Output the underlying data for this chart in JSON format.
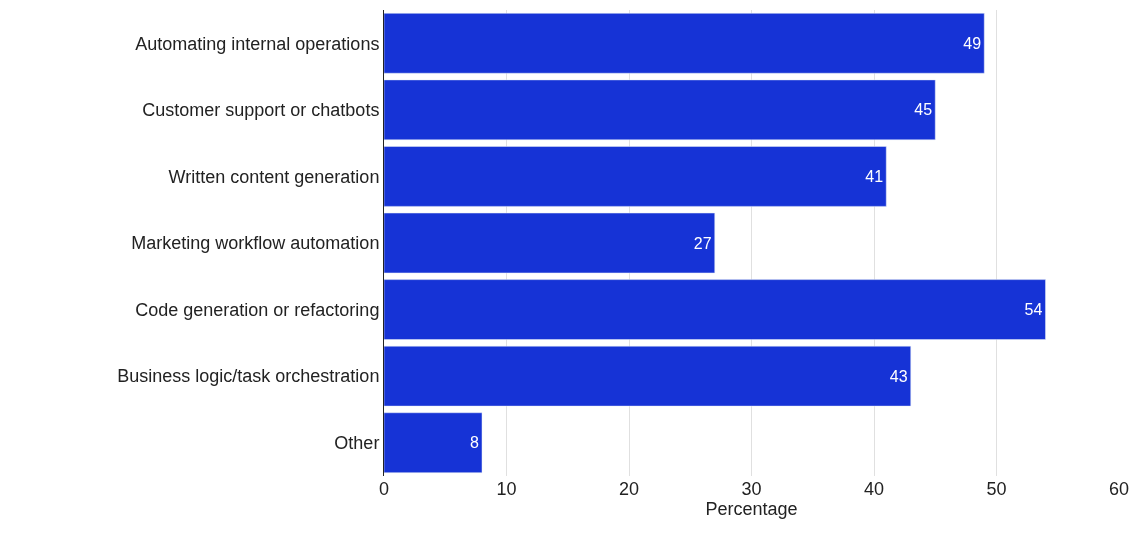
{
  "chart_data": {
    "type": "bar",
    "orientation": "horizontal",
    "xlabel": "Percentage",
    "categories": [
      "Automating internal operations",
      "Customer support or chatbots",
      "Written content generation",
      "Marketing workflow automation",
      "Code generation or refactoring",
      "Business logic/task orchestration",
      "Other"
    ],
    "values": [
      49,
      45,
      41,
      27,
      54,
      43,
      8
    ],
    "color": "#1633d6",
    "xlim": [
      0,
      60
    ],
    "xticks": [
      0,
      10,
      20,
      30,
      40,
      50,
      60
    ],
    "grid": "x",
    "data_labels": true
  }
}
